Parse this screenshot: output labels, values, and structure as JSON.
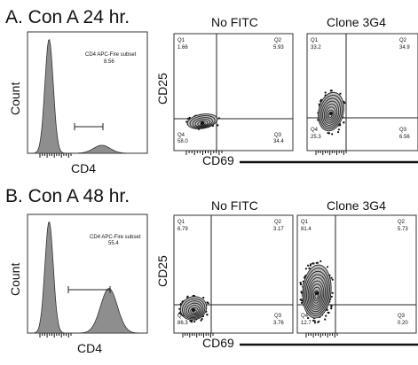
{
  "chart_data": [
    {
      "panel": "A",
      "panel_title": "A. Con A 24 hr.",
      "histogram": {
        "type": "area",
        "xlabel": "CD4",
        "ylabel": "Count",
        "gate_name": "CD4 APC-Fire subset",
        "gate_value": "8.56",
        "peaks": [
          {
            "position": 0.18,
            "height": 1.0
          },
          {
            "position": 0.62,
            "height": 0.07
          }
        ]
      },
      "contour_plots": [
        {
          "type": "scatter",
          "title": "No FITC",
          "xlabel": "",
          "ylabel": "CD25",
          "quadrants": {
            "Q1": "1.66",
            "Q2": "5.93",
            "Q3": "34.4",
            "Q4": "58.0"
          },
          "population_center": [
            0.3,
            0.2
          ]
        },
        {
          "type": "scatter",
          "title": "Clone 3G4",
          "xlabel": "",
          "ylabel": "",
          "quadrants": {
            "Q1": "33.2",
            "Q2": "34.9",
            "Q3": "6.56",
            "Q4": "25.3"
          },
          "population_center": [
            0.28,
            0.35
          ]
        }
      ],
      "shared_xlabel": "CD69"
    },
    {
      "panel": "B",
      "panel_title": "B. Con A 48 hr.",
      "histogram": {
        "type": "area",
        "xlabel": "CD4",
        "ylabel": "Count",
        "gate_name": "CD4 APC-Fire subset",
        "gate_value": "55.4",
        "peaks": [
          {
            "position": 0.18,
            "height": 1.0
          },
          {
            "position": 0.68,
            "height": 0.4
          }
        ]
      },
      "contour_plots": [
        {
          "type": "scatter",
          "title": "No FITC",
          "xlabel": "",
          "ylabel": "CD25",
          "quadrants": {
            "Q1": "6.79",
            "Q2": "3.17",
            "Q3": "3.76",
            "Q4": "86.3"
          },
          "population_center": [
            0.3,
            0.2
          ]
        },
        {
          "type": "scatter",
          "title": "Clone 3G4",
          "xlabel": "",
          "ylabel": "",
          "quadrants": {
            "Q1": "81.4",
            "Q2": "5.73",
            "Q3": "0.20",
            "Q4": "12.7"
          },
          "population_center": [
            0.28,
            0.35
          ]
        }
      ],
      "shared_xlabel": "CD69"
    }
  ]
}
